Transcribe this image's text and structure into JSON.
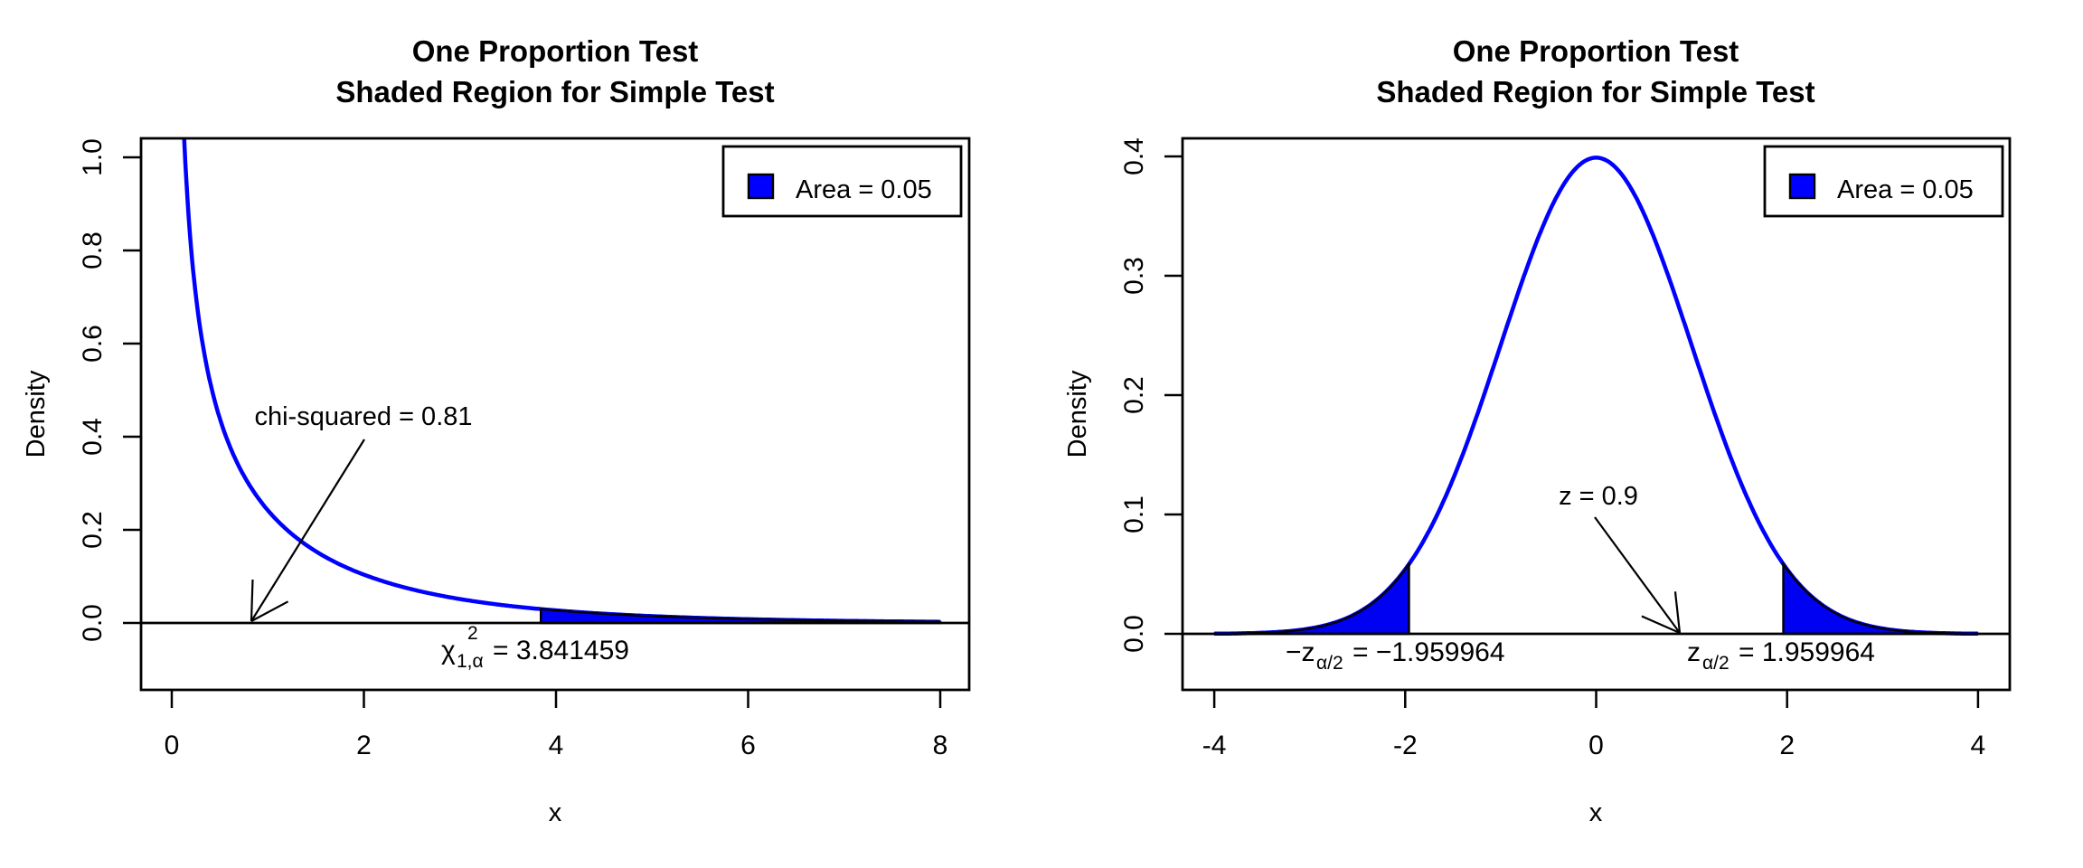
{
  "page": {
    "background": "#ffffff"
  },
  "chart_data": [
    {
      "type": "line",
      "panel": "left",
      "title": [
        "One Proportion Test",
        "Shaded Region for Simple Test"
      ],
      "xlabel": "x",
      "ylabel": "Density",
      "xlim": [
        0,
        8
      ],
      "ylim": [
        0,
        1.0
      ],
      "xticks": [
        "0",
        "2",
        "4",
        "6",
        "8"
      ],
      "yticks": [
        "0.0",
        "0.2",
        "0.4",
        "0.6",
        "0.8",
        "1.0"
      ],
      "grid": false,
      "curve": {
        "distribution": "chi-squared",
        "df": 1,
        "color": "#0000ff",
        "range": [
          0,
          8
        ]
      },
      "curve_sample": {
        "x": [
          0.1,
          0.25,
          0.5,
          0.75,
          1,
          1.5,
          2,
          2.5,
          3,
          3.5,
          3.841459,
          4,
          4.5,
          5,
          5.5,
          6,
          6.5,
          7,
          7.5,
          8
        ],
        "y": [
          1.2,
          0.7041,
          0.4394,
          0.3166,
          0.242,
          0.1539,
          0.1038,
          0.0723,
          0.0514,
          0.0371,
          0.0298,
          0.027,
          0.0198,
          0.0146,
          0.0109,
          0.0081,
          0.0061,
          0.0046,
          0.0034,
          0.0026
        ]
      },
      "shaded_regions": [
        {
          "from": 3.841459,
          "to": 8,
          "fill": "#0000f2",
          "border": "#000000",
          "area": 0.05
        }
      ],
      "legend": {
        "label": "Area = 0.05",
        "position": "topright",
        "swatch_color": "#0000ff"
      },
      "statistic": {
        "text": "chi-squared = 0.81",
        "value": 0.81
      },
      "critical_labels": [
        {
          "base": "χ",
          "sub": "1,α",
          "sup": "2",
          "rest": "= 3.841459",
          "value": 3.841459
        }
      ]
    },
    {
      "type": "line",
      "panel": "right",
      "title": [
        "One Proportion Test",
        "Shaded Region for Simple Test"
      ],
      "xlabel": "x",
      "ylabel": "Density",
      "xlim": [
        -4,
        4
      ],
      "ylim": [
        0,
        0.4
      ],
      "xticks": [
        "-4",
        "-2",
        "0",
        "2",
        "4"
      ],
      "yticks": [
        "0.0",
        "0.1",
        "0.2",
        "0.3",
        "0.4"
      ],
      "grid": false,
      "curve": {
        "distribution": "normal",
        "mean": 0,
        "sd": 1,
        "color": "#0000ff",
        "range": [
          -4,
          4
        ]
      },
      "curve_sample": {
        "x": [
          -4,
          -3.5,
          -3,
          -2.5,
          -2,
          -1.959964,
          -1.5,
          -1,
          -0.5,
          0,
          0.5,
          1,
          1.5,
          2,
          2.5,
          3,
          3.5,
          4
        ],
        "y": [
          0.0001,
          0.0009,
          0.0044,
          0.0175,
          0.054,
          0.0584,
          0.1295,
          0.242,
          0.3521,
          0.3989,
          0.3521,
          0.242,
          0.1295,
          0.054,
          0.0175,
          0.0044,
          0.0009,
          0.0001
        ]
      },
      "shaded_regions": [
        {
          "from": -4,
          "to": -1.959964,
          "fill": "#0000f2",
          "border": "#000000",
          "area": 0.025
        },
        {
          "from": 1.959964,
          "to": 4,
          "fill": "#0000f2",
          "border": "#000000",
          "area": 0.025
        }
      ],
      "legend": {
        "label": "Area = 0.05",
        "position": "topright",
        "swatch_color": "#0000ff"
      },
      "statistic": {
        "text": "z = 0.9",
        "value": 0.9
      },
      "critical_labels": [
        {
          "base": "−z",
          "sub": "α/2",
          "sup": "",
          "rest": "= −1.959964",
          "value": -1.959964
        },
        {
          "base": "z",
          "sub": "α/2",
          "sup": "",
          "rest": "= 1.959964",
          "value": 1.959964
        }
      ]
    }
  ]
}
